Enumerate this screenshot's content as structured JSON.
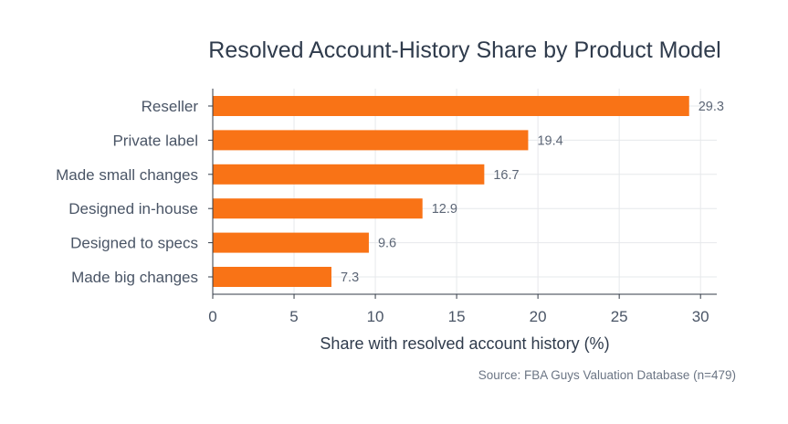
{
  "chart_data": {
    "type": "bar",
    "orientation": "horizontal",
    "title": "Resolved Account-History Share by Product Model",
    "xlabel": "Share with resolved account history (%)",
    "ylabel": "",
    "categories": [
      "Reseller",
      "Private label",
      "Made small changes",
      "Designed in-house",
      "Designed to specs",
      "Made big changes"
    ],
    "values": [
      29.3,
      19.4,
      16.7,
      12.9,
      9.6,
      7.3
    ],
    "value_labels": [
      "29.3",
      "19.4",
      "16.7",
      "12.9",
      "9.6",
      "7.3"
    ],
    "xlim": [
      0,
      31
    ],
    "xticks": [
      0,
      5,
      10,
      15,
      20,
      25,
      30
    ],
    "grid": true,
    "bar_color": "#f97316",
    "source": "Source: FBA Guys Valuation Database (n=479)"
  }
}
